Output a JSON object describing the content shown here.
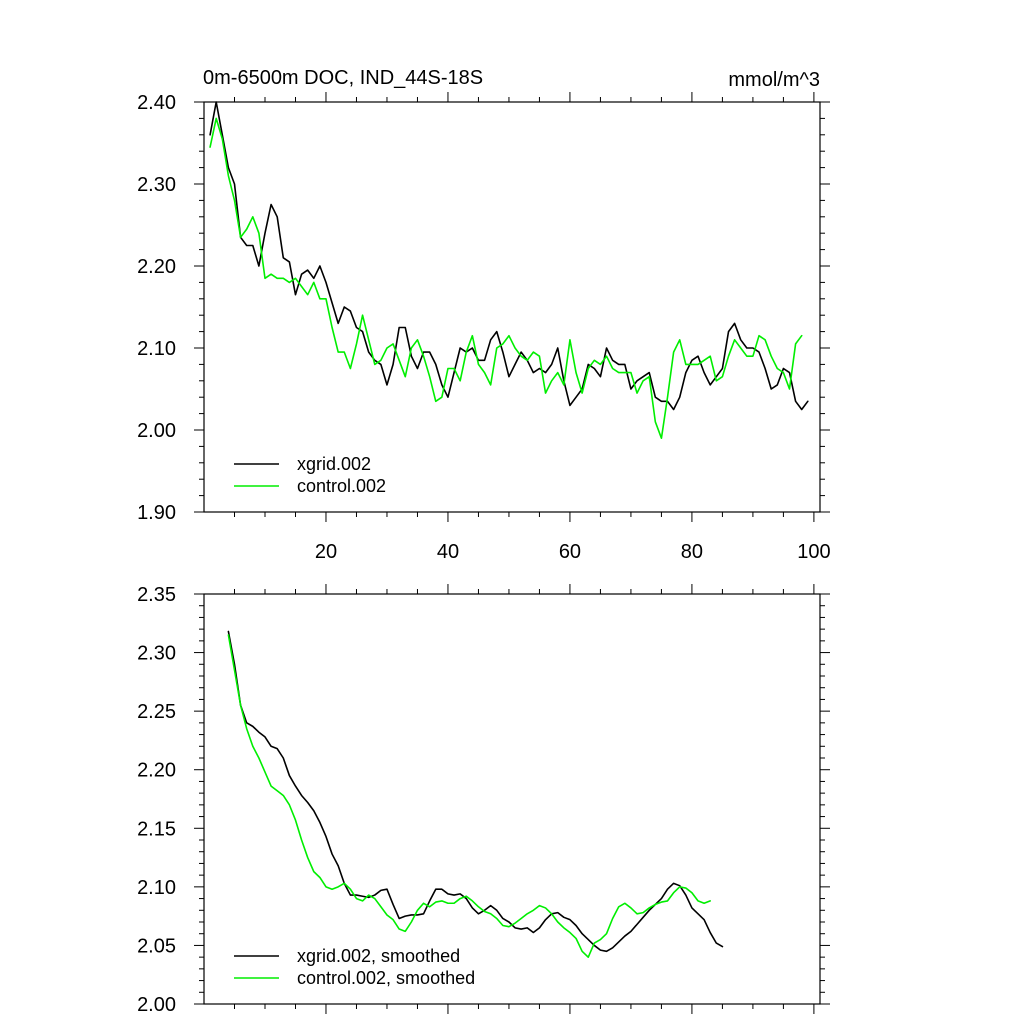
{
  "chart_data": [
    {
      "type": "line",
      "title": "0m-6500m DOC, IND_44S-18S",
      "units": "mmol/m^3",
      "xlim": [
        0,
        101
      ],
      "ylim": [
        1.9,
        2.4
      ],
      "xticks": [
        20,
        40,
        60,
        80,
        100
      ],
      "xtick_labels": [
        "20",
        "40",
        "60",
        "80",
        "100"
      ],
      "yticks": [
        1.9,
        2.0,
        2.1,
        2.2,
        2.3,
        2.4
      ],
      "ytick_labels": [
        "1.90",
        "2.00",
        "2.10",
        "2.20",
        "2.30",
        "2.40"
      ],
      "legend_position": "bottom-left",
      "series": [
        {
          "name": "xgrid.002",
          "color": "#000000",
          "x_start": 1,
          "values": [
            2.36,
            2.4,
            2.36,
            2.32,
            2.3,
            2.235,
            2.225,
            2.225,
            2.2,
            2.24,
            2.275,
            2.26,
            2.21,
            2.205,
            2.165,
            2.19,
            2.195,
            2.185,
            2.2,
            2.18,
            2.155,
            2.13,
            2.15,
            2.145,
            2.125,
            2.12,
            2.095,
            2.085,
            2.08,
            2.055,
            2.08,
            2.125,
            2.125,
            2.09,
            2.075,
            2.095,
            2.095,
            2.08,
            2.055,
            2.04,
            2.07,
            2.1,
            2.095,
            2.1,
            2.085,
            2.085,
            2.11,
            2.12,
            2.095,
            2.065,
            2.08,
            2.095,
            2.085,
            2.07,
            2.075,
            2.07,
            2.08,
            2.1,
            2.06,
            2.03,
            2.04,
            2.05,
            2.08,
            2.075,
            2.065,
            2.1,
            2.085,
            2.08,
            2.08,
            2.05,
            2.06,
            2.065,
            2.07,
            2.04,
            2.035,
            2.035,
            2.025,
            2.04,
            2.07,
            2.085,
            2.09,
            2.07,
            2.055,
            2.065,
            2.075,
            2.12,
            2.13,
            2.11,
            2.1,
            2.1,
            2.095,
            2.075,
            2.05,
            2.055,
            2.075,
            2.07,
            2.035,
            2.025,
            2.035
          ]
        },
        {
          "name": "control.002",
          "color": "#00ee00",
          "x_start": 1,
          "values": [
            2.345,
            2.38,
            2.355,
            2.31,
            2.28,
            2.235,
            2.245,
            2.26,
            2.24,
            2.185,
            2.19,
            2.185,
            2.185,
            2.18,
            2.185,
            2.175,
            2.165,
            2.18,
            2.16,
            2.16,
            2.125,
            2.095,
            2.095,
            2.075,
            2.105,
            2.14,
            2.11,
            2.08,
            2.085,
            2.1,
            2.105,
            2.085,
            2.065,
            2.1,
            2.11,
            2.09,
            2.065,
            2.035,
            2.04,
            2.075,
            2.075,
            2.06,
            2.095,
            2.115,
            2.08,
            2.07,
            2.055,
            2.1,
            2.105,
            2.115,
            2.1,
            2.09,
            2.085,
            2.095,
            2.09,
            2.045,
            2.06,
            2.07,
            2.055,
            2.11,
            2.07,
            2.045,
            2.075,
            2.085,
            2.08,
            2.09,
            2.075,
            2.07,
            2.07,
            2.07,
            2.045,
            2.06,
            2.065,
            2.01,
            1.99,
            2.04,
            2.095,
            2.11,
            2.08,
            2.08,
            2.08,
            2.085,
            2.09,
            2.06,
            2.065,
            2.09,
            2.11,
            2.1,
            2.09,
            2.09,
            2.115,
            2.11,
            2.09,
            2.075,
            2.07,
            2.05,
            2.105,
            2.115
          ]
        }
      ]
    },
    {
      "type": "line",
      "title": "",
      "xlim": [
        0,
        101
      ],
      "ylim": [
        2.0,
        2.35
      ],
      "xticks": [
        20,
        40,
        60,
        80,
        100
      ],
      "xtick_labels": [],
      "yticks": [
        2.0,
        2.05,
        2.1,
        2.15,
        2.2,
        2.25,
        2.3,
        2.35
      ],
      "ytick_labels": [
        "2.00",
        "2.05",
        "2.10",
        "2.15",
        "2.20",
        "2.25",
        "2.30",
        "2.35"
      ],
      "legend_position": "bottom-left",
      "series": [
        {
          "name": "xgrid.002, smoothed",
          "color": "#000000",
          "x_start": 4,
          "values": [
            2.318,
            2.29,
            2.255,
            2.24,
            2.237,
            2.232,
            2.228,
            2.22,
            2.218,
            2.21,
            2.195,
            2.186,
            2.178,
            2.172,
            2.165,
            2.155,
            2.143,
            2.128,
            2.118,
            2.103,
            2.093,
            2.093,
            2.092,
            2.091,
            2.093,
            2.097,
            2.098,
            2.085,
            2.073,
            2.075,
            2.076,
            2.076,
            2.077,
            2.088,
            2.098,
            2.098,
            2.094,
            2.093,
            2.094,
            2.09,
            2.082,
            2.077,
            2.08,
            2.084,
            2.08,
            2.073,
            2.07,
            2.065,
            2.064,
            2.065,
            2.061,
            2.065,
            2.072,
            2.077,
            2.078,
            2.074,
            2.072,
            2.067,
            2.06,
            2.055,
            2.05,
            2.046,
            2.045,
            2.048,
            2.053,
            2.058,
            2.062,
            2.068,
            2.074,
            2.08,
            2.085,
            2.09,
            2.098,
            2.103,
            2.101,
            2.093,
            2.082,
            2.077,
            2.072,
            2.061,
            2.052,
            2.049
          ]
        },
        {
          "name": "control.002, smoothed",
          "color": "#00ee00",
          "x_start": 4,
          "values": [
            2.315,
            2.285,
            2.255,
            2.235,
            2.22,
            2.21,
            2.198,
            2.186,
            2.182,
            2.178,
            2.17,
            2.157,
            2.14,
            2.125,
            2.113,
            2.108,
            2.1,
            2.098,
            2.1,
            2.103,
            2.098,
            2.09,
            2.088,
            2.093,
            2.09,
            2.083,
            2.076,
            2.072,
            2.064,
            2.062,
            2.07,
            2.08,
            2.086,
            2.083,
            2.087,
            2.088,
            2.086,
            2.086,
            2.09,
            2.092,
            2.088,
            2.083,
            2.079,
            2.077,
            2.073,
            2.067,
            2.066,
            2.069,
            2.073,
            2.077,
            2.08,
            2.084,
            2.082,
            2.077,
            2.07,
            2.065,
            2.061,
            2.056,
            2.045,
            2.04,
            2.052,
            2.055,
            2.06,
            2.073,
            2.083,
            2.086,
            2.082,
            2.077,
            2.078,
            2.082,
            2.085,
            2.087,
            2.088,
            2.095,
            2.1,
            2.099,
            2.095,
            2.088,
            2.086,
            2.088
          ]
        }
      ]
    }
  ]
}
